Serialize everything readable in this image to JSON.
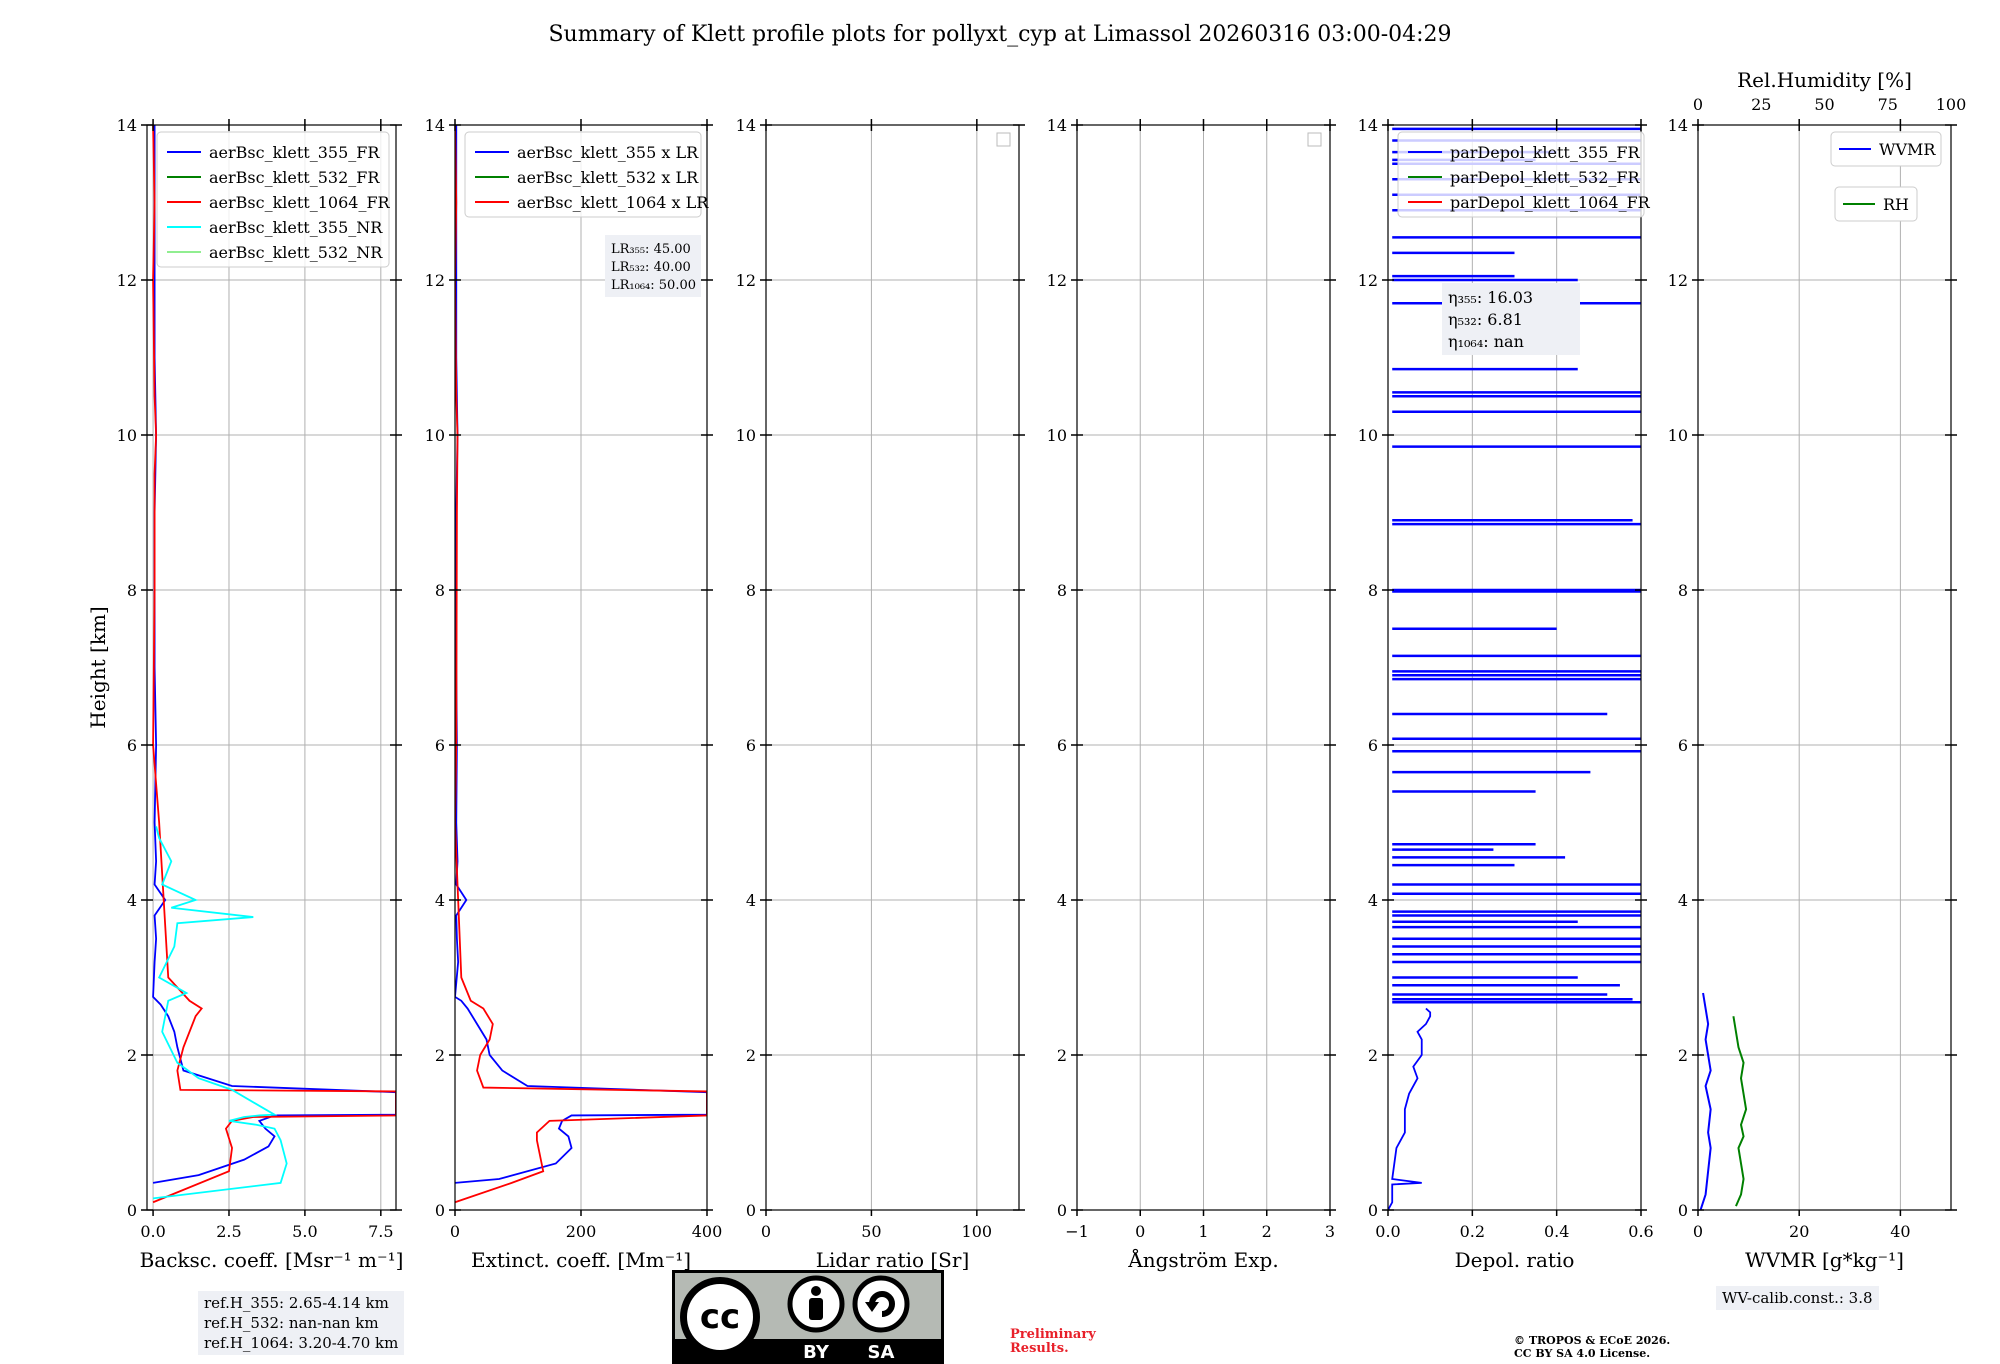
{
  "title": "Summary of Klett profile plots for pollyxt_cyp at Limassol 20260316 03:00-04:29",
  "colors": {
    "c355": "#0000ff",
    "c532": "#008000",
    "c1064": "#ff0000",
    "c355NR": "#00ffff",
    "c532NR": "#90ee90"
  },
  "chart_data": [
    {
      "type": "line",
      "panel": "backscatter",
      "xlabel": "Backsc. coeff. [Msr⁻¹ m⁻¹]",
      "ylabel": "Height [km]",
      "xlim": [
        -0.2,
        8.0
      ],
      "ylim": [
        0,
        14
      ],
      "xticks": [
        0.0,
        2.5,
        5.0,
        7.5
      ],
      "xticklabels": [
        "0.0",
        "2.5",
        "5.0",
        "7.5"
      ],
      "legend": [
        "aerBsc_klett_355_FR",
        "aerBsc_klett_532_FR",
        "aerBsc_klett_1064_FR",
        "aerBsc_klett_355_NR",
        "aerBsc_klett_532_NR"
      ],
      "series": [
        {
          "name": "aerBsc_klett_355_FR",
          "color": "#0000ff",
          "x": [
            0.0,
            1.5,
            3.0,
            3.8,
            4.0,
            3.7,
            3.5,
            4.0,
            8.0,
            8.0,
            2.6,
            1.0,
            0.9,
            0.8,
            0.7,
            0.5,
            0.25,
            0.0,
            0.05,
            0.1,
            0.05,
            0.4,
            0.05,
            0.1,
            0.05,
            0.1,
            0.05,
            0.05,
            0.05,
            0.1,
            0.05,
            0.05,
            0.05,
            0.05
          ],
          "y": [
            0.35,
            0.45,
            0.65,
            0.82,
            0.95,
            1.05,
            1.15,
            1.22,
            1.23,
            1.52,
            1.6,
            1.8,
            1.95,
            2.1,
            2.3,
            2.5,
            2.65,
            2.75,
            3.2,
            3.5,
            3.8,
            4.0,
            4.2,
            4.5,
            5.0,
            6.0,
            7.0,
            8.0,
            9.0,
            10.0,
            11.0,
            12.0,
            13.0,
            14.0
          ]
        },
        {
          "name": "aerBsc_klett_1064_FR",
          "color": "#ff0000",
          "x": [
            0.0,
            2.5,
            2.6,
            2.4,
            2.6,
            3.3,
            8.0,
            8.0,
            0.9,
            0.8,
            1.0,
            1.4,
            1.6,
            1.2,
            0.5,
            0.2,
            0.0,
            0.05,
            0.05,
            0.1,
            0.05,
            0.0,
            0.05,
            0.0
          ],
          "y": [
            0.1,
            0.5,
            0.8,
            1.05,
            1.15,
            1.2,
            1.22,
            1.53,
            1.55,
            1.8,
            2.1,
            2.5,
            2.6,
            2.7,
            3.0,
            5.0,
            6.0,
            8.0,
            9.5,
            10.0,
            10.5,
            12.0,
            13.0,
            14.0
          ]
        },
        {
          "name": "aerBsc_klett_355_NR",
          "color": "#00ffff",
          "x": [
            0.0,
            4.2,
            4.4,
            4.2,
            4.0,
            3.4,
            2.5,
            3.0,
            3.5,
            4.0,
            2.6,
            1.5,
            0.8,
            0.3,
            0.5,
            1.1,
            0.2,
            0.7,
            0.8,
            3.3,
            0.6,
            1.4,
            0.3,
            0.6,
            0.2,
            0.1
          ],
          "y": [
            0.15,
            0.35,
            0.6,
            0.9,
            1.05,
            1.1,
            1.15,
            1.2,
            1.22,
            1.23,
            1.55,
            1.7,
            1.9,
            2.3,
            2.7,
            2.8,
            3.0,
            3.4,
            3.7,
            3.78,
            3.9,
            4.0,
            4.2,
            4.5,
            4.8,
            4.95
          ]
        }
      ]
    },
    {
      "type": "line",
      "panel": "extinction",
      "xlabel": "Extinct. coeff. [Mm⁻¹]",
      "xlim": [
        0,
        400
      ],
      "ylim": [
        0,
        14
      ],
      "xticks": [
        0,
        200,
        400
      ],
      "xticklabels": [
        "0",
        "200",
        "400"
      ],
      "legend": [
        "aerBsc_klett_355 x LR",
        "aerBsc_klett_532 x LR",
        "aerBsc_klett_1064 x LR"
      ],
      "lr_labels": [
        "LR₃₅₅: 45.00",
        "LR₅₃₂: 40.00",
        "LR₁₀₆₄: 50.00"
      ],
      "series": [
        {
          "name": "aerBsc_klett_355 x LR",
          "color": "#0000ff",
          "x": [
            0,
            70,
            160,
            185,
            180,
            165,
            170,
            185,
            400,
            400,
            115,
            75,
            55,
            50,
            35,
            20,
            10,
            0,
            5,
            3,
            2,
            18,
            2,
            4,
            2,
            3,
            2,
            2,
            2,
            4,
            2,
            2,
            2,
            2
          ],
          "y": [
            0.35,
            0.4,
            0.6,
            0.8,
            0.95,
            1.05,
            1.15,
            1.22,
            1.23,
            1.52,
            1.6,
            1.8,
            2.0,
            2.2,
            2.4,
            2.6,
            2.7,
            2.75,
            3.2,
            3.5,
            3.8,
            4.0,
            4.2,
            4.5,
            5.0,
            6.0,
            7.0,
            8.0,
            9.0,
            10.0,
            11.0,
            12.0,
            13.0,
            14.0
          ]
        },
        {
          "name": "aerBsc_klett_1064 x LR",
          "color": "#ff0000",
          "x": [
            0,
            90,
            140,
            135,
            130,
            130,
            150,
            400,
            400,
            45,
            35,
            40,
            55,
            60,
            45,
            25,
            10,
            0,
            2,
            3,
            4,
            2,
            0,
            2,
            0
          ],
          "y": [
            0.1,
            0.35,
            0.5,
            0.7,
            0.9,
            1.0,
            1.15,
            1.22,
            1.53,
            1.58,
            1.8,
            2.0,
            2.2,
            2.4,
            2.6,
            2.7,
            3.0,
            5.0,
            6.0,
            9.0,
            10.0,
            10.5,
            12.0,
            13.0,
            14.0
          ]
        }
      ]
    },
    {
      "type": "line",
      "panel": "lidar_ratio",
      "xlabel": "Lidar ratio [Sr]",
      "xlim": [
        0,
        120
      ],
      "ylim": [
        0,
        14
      ],
      "xticks": [
        0,
        50,
        100
      ],
      "xticklabels": [
        "0",
        "50",
        "100"
      ],
      "series": []
    },
    {
      "type": "line",
      "panel": "angstrom",
      "xlabel": "Ångström Exp.",
      "xlim": [
        -1,
        3
      ],
      "ylim": [
        0,
        14
      ],
      "xticks": [
        -1,
        0,
        1,
        2,
        3
      ],
      "xticklabels": [
        "−1",
        "0",
        "1",
        "2",
        "3"
      ],
      "series": []
    },
    {
      "type": "line",
      "panel": "depolarization",
      "xlabel": "Depol. ratio",
      "xlim": [
        0.0,
        0.6
      ],
      "ylim": [
        0,
        14
      ],
      "xticks": [
        0.0,
        0.2,
        0.4,
        0.6
      ],
      "xticklabels": [
        "0.0",
        "0.2",
        "0.4",
        "0.6"
      ],
      "legend": [
        "parDepol_klett_355_FR",
        "parDepol_klett_532_FR",
        "parDepol_klett_1064_FR"
      ],
      "eta_labels": [
        "η₃₅₅: 16.03",
        "η₅₃₂: 6.81",
        "η₁₀₆₄: nan"
      ],
      "series": [
        {
          "name": "parDepol_klett_355_FR",
          "color": "#0000ff",
          "x": [
            0.0,
            0.01,
            0.01,
            0.08,
            0.01,
            0.02,
            0.04,
            0.04,
            0.05,
            0.07,
            0.06,
            0.08,
            0.08,
            0.07,
            0.09,
            0.1,
            0.1,
            0.09
          ],
          "y": [
            0.0,
            0.1,
            0.33,
            0.35,
            0.4,
            0.8,
            1.0,
            1.3,
            1.5,
            1.7,
            1.85,
            2.0,
            2.2,
            2.3,
            2.4,
            2.5,
            2.55,
            2.6
          ]
        },
        {
          "name": "parDepol_spikes",
          "color": "#0000ff",
          "kind": "spikes",
          "x": [
            0.6,
            0.58,
            0.52,
            0.55,
            0.45,
            0.6,
            0.6,
            0.6,
            0.6,
            0.6,
            0.45,
            0.6,
            0.6,
            0.3,
            0.42,
            0.35,
            0.35,
            0.48,
            0.6,
            0.6,
            0.52,
            0.6,
            0.6,
            0.4,
            0.6,
            0.6,
            0.6,
            0.58,
            0.6,
            0.6,
            0.6,
            0.6,
            0.45,
            0.6,
            0.3,
            0.45,
            0.6,
            0.3,
            0.6,
            0.6,
            0.6,
            0.4,
            0.35,
            0.6,
            0.6,
            0.6,
            0.6,
            0.25,
            0.6,
            0.6,
            0.6
          ],
          "y": [
            2.68,
            2.72,
            2.78,
            2.9,
            3.0,
            3.2,
            3.3,
            3.4,
            3.5,
            3.65,
            3.72,
            3.8,
            4.08,
            4.45,
            4.55,
            4.72,
            5.4,
            5.65,
            5.92,
            6.08,
            6.4,
            6.9,
            7.15,
            7.5,
            7.98,
            8.0,
            8.85,
            8.9,
            9.85,
            10.3,
            10.5,
            10.55,
            10.85,
            11.7,
            12.05,
            12.0,
            12.55,
            12.35,
            13.1,
            13.3,
            13.5,
            13.65,
            13.55,
            13.8,
            13.95,
            6.85,
            6.95,
            4.65,
            4.2,
            3.85,
            12.9
          ]
        }
      ]
    },
    {
      "type": "line",
      "panel": "water_vapor",
      "xlabel": "WVMR [g*kg⁻¹]",
      "xlim": [
        0,
        50
      ],
      "ylim": [
        0,
        14
      ],
      "xticks": [
        0,
        20,
        40
      ],
      "xticklabels": [
        "0",
        "20",
        "40"
      ],
      "x2label": "Rel.Humidity [%]",
      "x2lim": [
        0,
        100
      ],
      "x2ticks": [
        0,
        25,
        50,
        75,
        100
      ],
      "x2ticklabels": [
        "0",
        "25",
        "50",
        "75",
        "100"
      ],
      "legend": [
        "WVMR",
        "RH"
      ],
      "wv_calib_label": "WV-calib.const.: 3.8",
      "series": [
        {
          "name": "WVMR",
          "color": "#0000ff",
          "x": [
            0.5,
            1.5,
            2.0,
            2.5,
            2.0,
            2.5,
            1.5,
            2.5,
            2.0,
            1.5,
            2.0,
            1.5,
            1.0
          ],
          "y": [
            0.0,
            0.2,
            0.5,
            0.8,
            1.0,
            1.3,
            1.6,
            1.8,
            2.0,
            2.2,
            2.4,
            2.6,
            2.8
          ]
        },
        {
          "name": "RH",
          "color": "#008000",
          "x": [
            15,
            17,
            18,
            17,
            16,
            18,
            17,
            19,
            18,
            17,
            18,
            16,
            15,
            14
          ],
          "y": [
            0.05,
            0.2,
            0.4,
            0.6,
            0.8,
            0.95,
            1.1,
            1.3,
            1.5,
            1.7,
            1.9,
            2.1,
            2.3,
            2.5
          ]
        }
      ]
    }
  ],
  "ref_labels": [
    "ref.H_355: 2.65-4.14 km",
    "ref.H_532: nan-nan km",
    "ref.H_1064: 3.20-4.70 km"
  ],
  "license": {
    "by": "BY",
    "sa": "SA",
    "cc": "cc"
  },
  "prelim": [
    "Preliminary",
    "Results."
  ],
  "copyright": [
    "© TROPOS & ECoE 2026.",
    "CC BY SA 4.0 License."
  ]
}
